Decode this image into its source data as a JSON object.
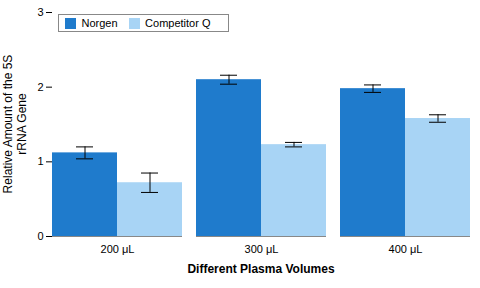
{
  "chart_data": {
    "type": "bar",
    "categories": [
      "200 μL",
      "300 μL",
      "400 μL"
    ],
    "series": [
      {
        "name": "Norgen",
        "color": "#1F7BCC",
        "values": [
          1.12,
          2.1,
          1.98
        ],
        "errors": [
          0.08,
          0.06,
          0.05
        ]
      },
      {
        "name": "Competitor Q",
        "color": "#A8D4F5",
        "values": [
          0.72,
          1.23,
          1.58
        ],
        "errors": [
          0.13,
          0.03,
          0.05
        ]
      }
    ],
    "ylabel": "Relative Amount of the 5S\nrRNA Gene",
    "xlabel": "Different Plasma Volumes",
    "ylim": [
      0,
      3
    ],
    "yticks": [
      0,
      1,
      2,
      3
    ],
    "grid": false,
    "legend": "upper-left"
  }
}
